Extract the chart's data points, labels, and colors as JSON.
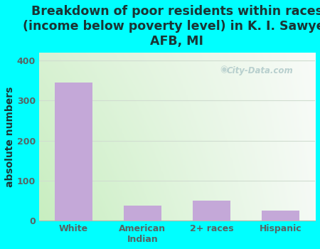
{
  "categories": [
    "White",
    "American\nIndian",
    "2+ races",
    "Hispanic"
  ],
  "values": [
    345,
    38,
    50,
    25
  ],
  "bar_color": "#c4a8d8",
  "title": "Breakdown of poor residents within races\n(income below poverty level) in K. I. Sawyer\nAFB, MI",
  "ylabel": "absolute numbers",
  "ylim": [
    0,
    420
  ],
  "yticks": [
    0,
    100,
    200,
    300,
    400
  ],
  "background_color": "#00ffff",
  "plot_bg_gradient_left": "#c8eec0",
  "plot_bg_gradient_right": "#f0f8f0",
  "plot_bg_top": "#f5faf8",
  "title_color": "#1a3535",
  "tick_color": "#556666",
  "watermark": "City-Data.com",
  "title_fontsize": 12.5,
  "ylabel_fontsize": 10,
  "grid_color": "#d0ddd0"
}
